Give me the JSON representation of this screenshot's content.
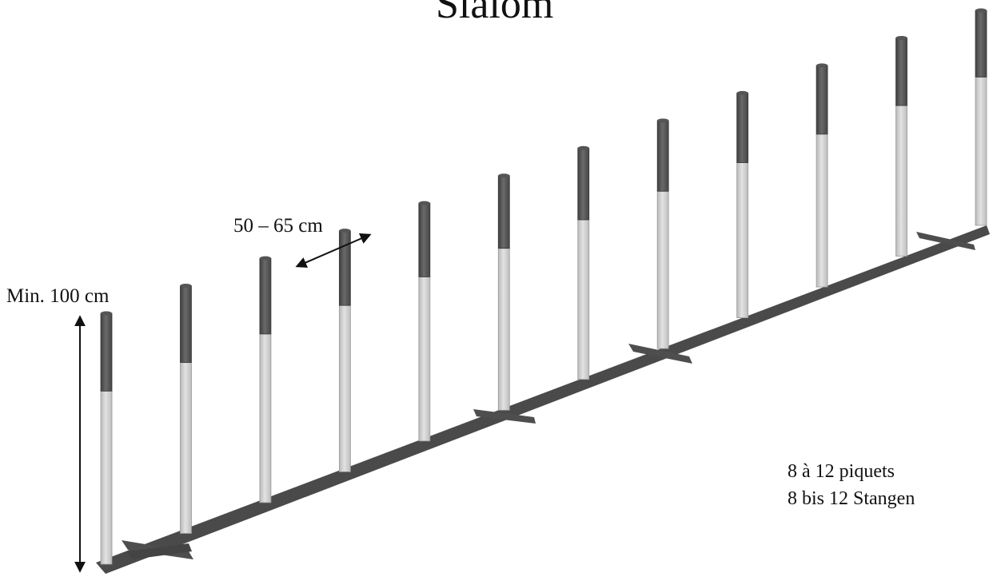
{
  "title": "Slalom",
  "labels": {
    "height": "Min. 100 cm",
    "spacing": "50 – 65 cm",
    "count_fr": "8 à 12 piquets",
    "count_de": "8 bis 12 Stangen"
  },
  "diagram": {
    "pole_count": 12,
    "pole_colors": {
      "top": "#595959",
      "bottom": "#d2d2d2",
      "base": "#444444"
    }
  }
}
